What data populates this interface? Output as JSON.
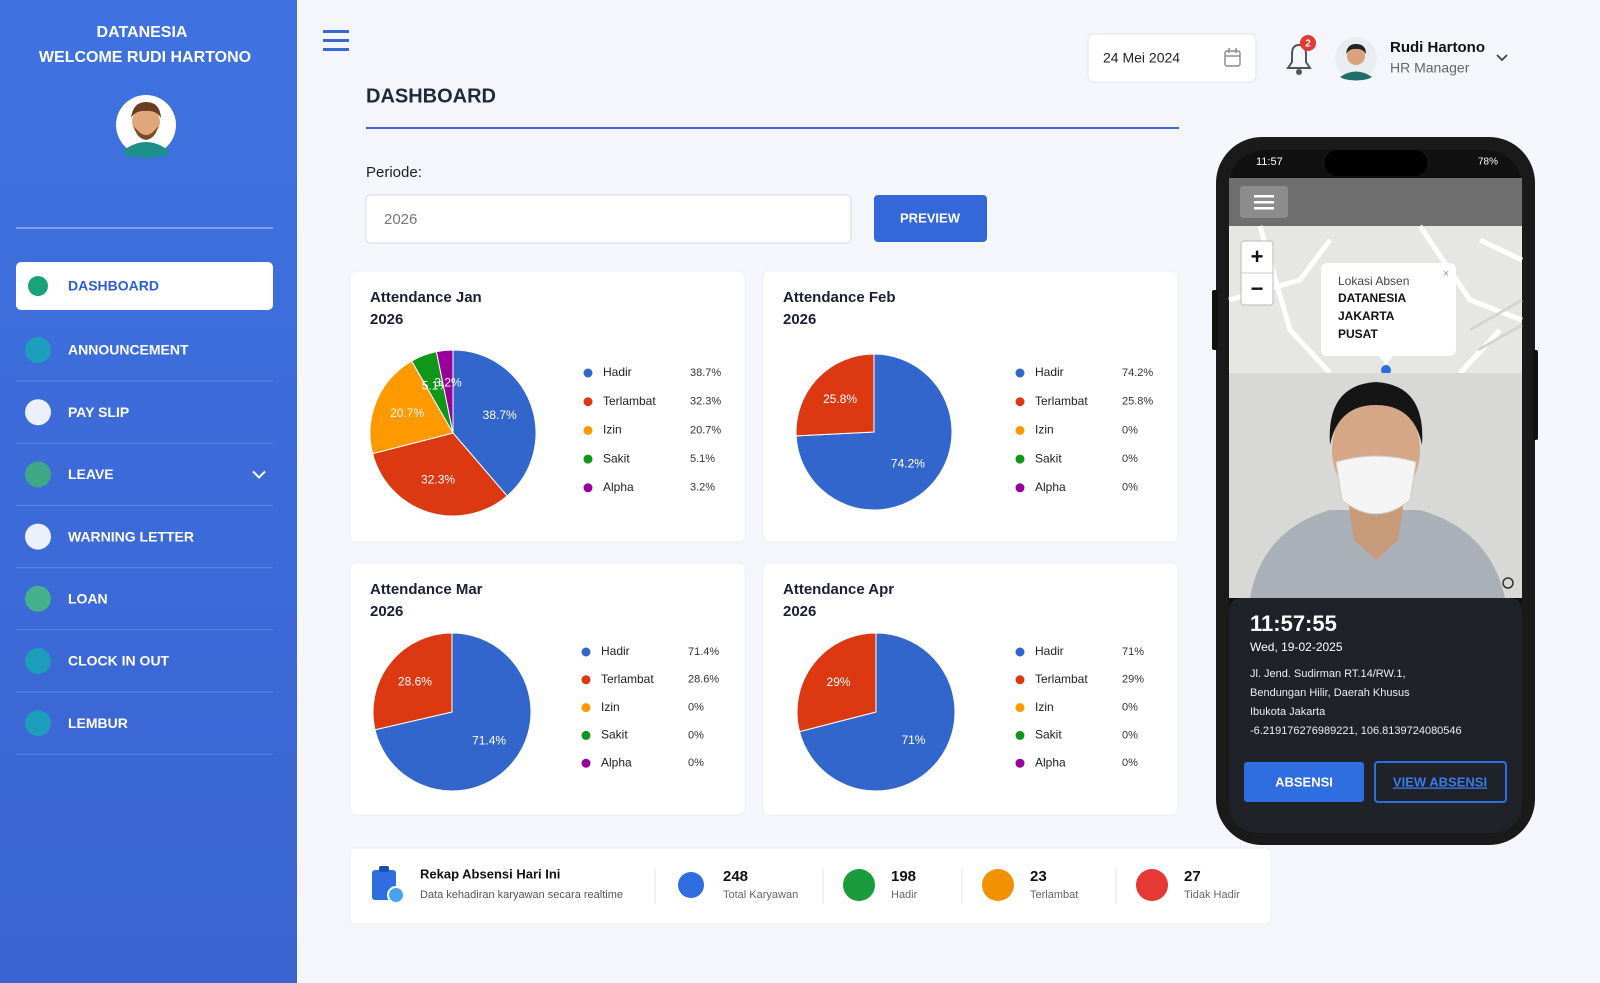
{
  "sidebar": {
    "brand": "DATANESIA",
    "welcome": "WELCOME RUDI HARTONO",
    "menu": [
      "DASHBOARD",
      "ANNOUNCEMENT",
      "PAY SLIP",
      "LEAVE",
      "WARNING LETTER",
      "LOAN",
      "CLOCK IN OUT",
      "LEMBUR"
    ]
  },
  "header": {
    "date": "24 Mei 2024",
    "notifications": 2,
    "user_name": "Rudi Hartono",
    "user_role": "HR Manager"
  },
  "page_title": "DASHBOARD",
  "filter": {
    "label": "Periode:",
    "value": "2026",
    "button": "PREVIEW"
  },
  "charts": [
    {
      "type": "pie",
      "title": "Attendance Jan",
      "subtitle": "2026",
      "categories": [
        "Hadir",
        "Terlambat",
        "Izin",
        "Sakit",
        "Alpha"
      ],
      "values": [
        38.7,
        32.3,
        20.7,
        5.1,
        3.2
      ],
      "value_labels": [
        "38.7%",
        "32.3%",
        "20.7%",
        "5.1%",
        "3.2%"
      ],
      "colors": [
        "#3366cc",
        "#dc3912",
        "#ff9900",
        "#109618",
        "#990099"
      ]
    },
    {
      "type": "pie",
      "title": "Attendance Feb",
      "subtitle": "2026",
      "categories": [
        "Hadir",
        "Terlambat",
        "Izin",
        "Sakit",
        "Alpha"
      ],
      "values": [
        74.2,
        25.8,
        0,
        0,
        0
      ],
      "value_labels": [
        "74.2%",
        "25.8%",
        "0%",
        "0%",
        "0%"
      ],
      "colors": [
        "#3366cc",
        "#dc3912",
        "#ff9900",
        "#109618",
        "#990099"
      ]
    },
    {
      "type": "pie",
      "title": "Attendance Mar",
      "subtitle": "2026",
      "categories": [
        "Hadir",
        "Terlambat",
        "Izin",
        "Sakit",
        "Alpha"
      ],
      "values": [
        71.4,
        28.6,
        0,
        0,
        0
      ],
      "value_labels": [
        "71.4%",
        "28.6%",
        "0%",
        "0%",
        "0%"
      ],
      "colors": [
        "#3366cc",
        "#dc3912",
        "#ff9900",
        "#109618",
        "#990099"
      ]
    },
    {
      "type": "pie",
      "title": "Attendance Apr",
      "subtitle": "2026",
      "categories": [
        "Hadir",
        "Terlambat",
        "Izin",
        "Sakit",
        "Alpha"
      ],
      "values": [
        71,
        29,
        0,
        0,
        0
      ],
      "value_labels": [
        "71%",
        "29%",
        "0%",
        "0%",
        "0%"
      ],
      "colors": [
        "#3366cc",
        "#dc3912",
        "#ff9900",
        "#109618",
        "#990099"
      ]
    }
  ],
  "summary": {
    "title": "Rekap Absensi Hari Ini",
    "subtitle": "Data kehadiran karyawan secara realtime",
    "stats": [
      {
        "value": 248,
        "label": "Total Karyawan"
      },
      {
        "value": 198,
        "label": "Hadir"
      },
      {
        "value": 23,
        "label": "Terlambat"
      },
      {
        "value": 27,
        "label": "Tidak Hadir"
      }
    ]
  },
  "phone": {
    "status_time": "11:57",
    "battery": "78%",
    "zoom_in": "+",
    "zoom_out": "−",
    "popup_title": "Lokasi Absen",
    "popup_lines": [
      "DATANESIA",
      "JAKARTA",
      "PUSAT"
    ],
    "clock": "11:57:55",
    "date": "Wed, 19-02-2025",
    "address_lines": [
      "Jl. Jend. Sudirman RT.14/RW.1,",
      "Bendungan Hilir, Daerah Khusus",
      "Ibukota Jakarta",
      "-6.219176276989221, 106.8139724080546"
    ],
    "button_primary": "ABSENSI",
    "button_secondary": "VIEW ABSENSI"
  }
}
